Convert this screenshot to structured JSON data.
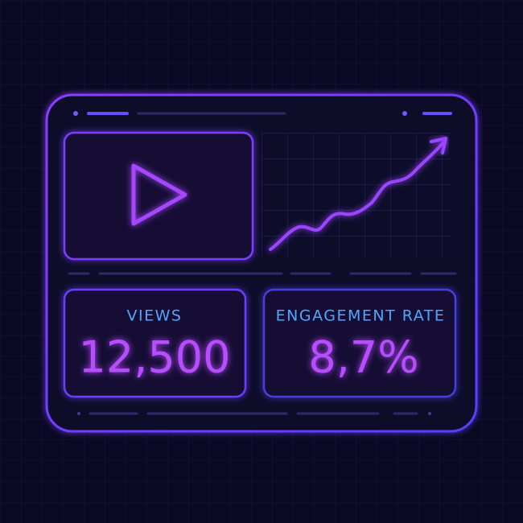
{
  "stats": [
    {
      "label": "VIEWS",
      "value": "12,500"
    },
    {
      "label": "ENGAGEMENT RATE",
      "value": "8,7%"
    }
  ]
}
